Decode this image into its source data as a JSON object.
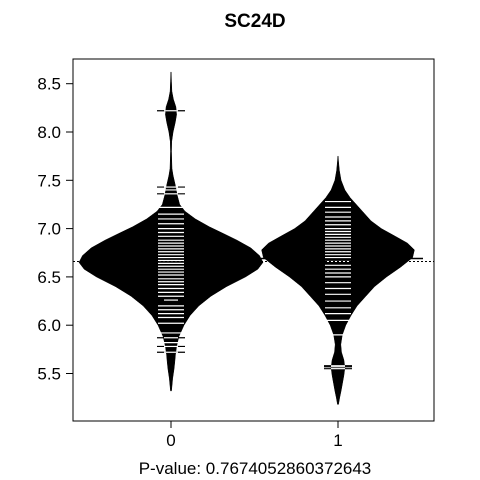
{
  "chart_data": {
    "type": "beanplot",
    "title": "SC24D",
    "xlabel": "P-value: 0.7674052860372643",
    "ylabel": "",
    "ylim": [
      5.0,
      8.7
    ],
    "y_ticks": [
      5.5,
      6.0,
      6.5,
      7.0,
      7.5,
      8.0,
      8.5
    ],
    "categories": [
      "0",
      "1"
    ],
    "overall_mean": 6.66,
    "grid": false,
    "legend": "none",
    "colors": {
      "bean_fill": "#000000",
      "bean_lines": "#ffffff",
      "axis": "#000000"
    },
    "series": [
      {
        "category": "0",
        "mean": 6.65,
        "density": [
          [
            5.32,
            0.003
          ],
          [
            5.45,
            0.01
          ],
          [
            5.55,
            0.018
          ],
          [
            5.62,
            0.022
          ],
          [
            5.7,
            0.026
          ],
          [
            5.78,
            0.032
          ],
          [
            5.88,
            0.045
          ],
          [
            6.0,
            0.075
          ],
          [
            6.1,
            0.11
          ],
          [
            6.2,
            0.16
          ],
          [
            6.3,
            0.23
          ],
          [
            6.4,
            0.32
          ],
          [
            6.5,
            0.43
          ],
          [
            6.58,
            0.5
          ],
          [
            6.65,
            0.53
          ],
          [
            6.72,
            0.51
          ],
          [
            6.8,
            0.46
          ],
          [
            6.88,
            0.38
          ],
          [
            6.95,
            0.3
          ],
          [
            7.02,
            0.22
          ],
          [
            7.1,
            0.14
          ],
          [
            7.18,
            0.08
          ],
          [
            7.25,
            0.05
          ],
          [
            7.35,
            0.035
          ],
          [
            7.45,
            0.025
          ],
          [
            7.55,
            0.012
          ],
          [
            7.62,
            0.006
          ],
          [
            7.72,
            0.004
          ],
          [
            7.8,
            0.003
          ],
          [
            7.9,
            0.004
          ],
          [
            8.0,
            0.012
          ],
          [
            8.1,
            0.025
          ],
          [
            8.18,
            0.032
          ],
          [
            8.26,
            0.028
          ],
          [
            8.34,
            0.014
          ],
          [
            8.42,
            0.005
          ],
          [
            8.52,
            0.003
          ],
          [
            8.62,
            0.001
          ]
        ],
        "points": [
          5.72,
          5.78,
          5.82,
          5.87,
          5.92,
          6.02,
          6.08,
          6.12,
          6.16,
          6.2,
          6.26,
          6.3,
          6.34,
          6.38,
          6.42,
          6.45,
          6.48,
          6.52,
          6.55,
          6.58,
          6.61,
          6.64,
          6.67,
          6.7,
          6.73,
          6.76,
          6.79,
          6.82,
          6.85,
          6.88,
          6.92,
          6.96,
          7.0,
          7.05,
          7.1,
          7.15,
          7.22,
          7.36,
          7.4,
          7.43,
          8.22
        ],
        "wide_points": [
          5.72,
          5.78,
          5.87,
          6.26,
          7.36,
          7.43,
          8.22
        ]
      },
      {
        "category": "1",
        "mean": 6.69,
        "density": [
          [
            5.18,
            0.003
          ],
          [
            5.25,
            0.01
          ],
          [
            5.32,
            0.018
          ],
          [
            5.4,
            0.026
          ],
          [
            5.48,
            0.034
          ],
          [
            5.56,
            0.04
          ],
          [
            5.64,
            0.034
          ],
          [
            5.72,
            0.02
          ],
          [
            5.8,
            0.016
          ],
          [
            5.9,
            0.025
          ],
          [
            6.0,
            0.045
          ],
          [
            6.1,
            0.075
          ],
          [
            6.2,
            0.11
          ],
          [
            6.3,
            0.16
          ],
          [
            6.4,
            0.21
          ],
          [
            6.5,
            0.28
          ],
          [
            6.6,
            0.36
          ],
          [
            6.7,
            0.43
          ],
          [
            6.78,
            0.44
          ],
          [
            6.85,
            0.4
          ],
          [
            6.92,
            0.33
          ],
          [
            7.0,
            0.25
          ],
          [
            7.08,
            0.19
          ],
          [
            7.16,
            0.15
          ],
          [
            7.24,
            0.11
          ],
          [
            7.32,
            0.07
          ],
          [
            7.4,
            0.04
          ],
          [
            7.5,
            0.018
          ],
          [
            7.6,
            0.008
          ],
          [
            7.7,
            0.003
          ],
          [
            7.75,
            0.001
          ]
        ],
        "points": [
          5.55,
          5.57,
          5.58,
          5.9,
          6.05,
          6.12,
          6.18,
          6.25,
          6.32,
          6.38,
          6.44,
          6.5,
          6.54,
          6.58,
          6.62,
          6.66,
          6.7,
          6.73,
          6.76,
          6.79,
          6.82,
          6.85,
          6.88,
          6.91,
          6.94,
          6.97,
          7.0,
          7.04,
          7.08,
          7.12,
          7.17,
          7.22,
          7.28
        ],
        "wide_points": [
          5.55,
          5.57,
          5.58
        ]
      }
    ]
  }
}
